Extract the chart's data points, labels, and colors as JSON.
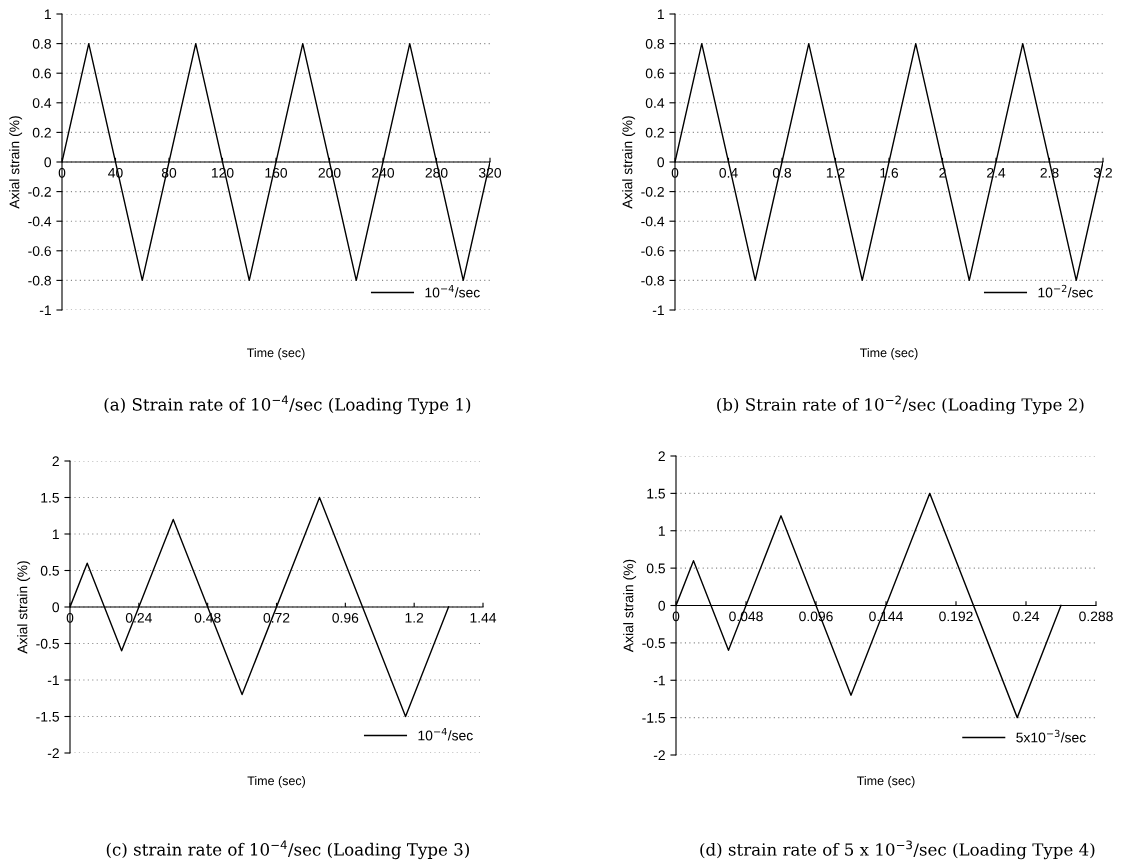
{
  "chart_data": [
    {
      "type": "line",
      "xlabel": "Time (sec)",
      "ylabel": "Axial strain (%)",
      "x": [
        0,
        20,
        60,
        100,
        140,
        180,
        220,
        260,
        300,
        320
      ],
      "series": [
        {
          "name": "10$^{−4}$/sec",
          "color": "#000000",
          "values": [
            0,
            0.8,
            -0.8,
            0.8,
            -0.8,
            0.8,
            -0.8,
            0.8,
            -0.8,
            0
          ]
        }
      ],
      "xlim": [
        0,
        320
      ],
      "xticks": [
        0,
        40,
        80,
        120,
        160,
        200,
        240,
        280,
        320
      ],
      "ylim": [
        -1,
        1
      ],
      "yticks": [
        -1,
        -0.8,
        -0.6,
        -0.4,
        -0.2,
        0,
        0.2,
        0.4,
        0.6,
        0.8,
        1
      ],
      "grid": "y",
      "legend": "bottom right",
      "marker": "none",
      "line_style": "solid",
      "annotations": [
        "(a) Strain rate of 10$^{−4}$/sec (Loading Type 1)"
      ]
    },
    {
      "type": "line",
      "xlabel": "Time (sec)",
      "ylabel": "Axial strain (%)",
      "x": [
        0,
        0.2,
        0.6,
        1.0,
        1.4,
        1.8,
        2.2,
        2.6,
        3.0,
        3.2
      ],
      "series": [
        {
          "name": "10$^{−2}$/sec",
          "color": "#000000",
          "values": [
            0,
            0.8,
            -0.8,
            0.8,
            -0.8,
            0.8,
            -0.8,
            0.8,
            -0.8,
            0
          ]
        }
      ],
      "xlim": [
        0,
        3.2
      ],
      "xticks": [
        0,
        0.4,
        0.8,
        1.2,
        1.6,
        2,
        2.4,
        2.8,
        3.2
      ],
      "ylim": [
        -1,
        1
      ],
      "yticks": [
        -1,
        -0.8,
        -0.6,
        -0.4,
        -0.2,
        0,
        0.2,
        0.4,
        0.6,
        0.8,
        1
      ],
      "grid": "y",
      "legend": "bottom right",
      "marker": "none",
      "line_style": "solid",
      "annotations": [
        "(b) Strain rate of 10$^{−2}$/sec (Loading Type 2)"
      ]
    },
    {
      "type": "line",
      "xlabel": "Time (sec)",
      "ylabel": "Axial strain (%)",
      "x": [
        0,
        0.06,
        0.18,
        0.36,
        0.6,
        0.87,
        1.17,
        1.32
      ],
      "series": [
        {
          "name": "10$^{−4}$/sec",
          "color": "#000000",
          "values": [
            0,
            0.6,
            -0.6,
            1.2,
            -1.2,
            1.5,
            -1.5,
            0
          ]
        }
      ],
      "xlim": [
        0,
        1.44
      ],
      "xticks": [
        0,
        0.24,
        0.48,
        0.72,
        0.96,
        1.2,
        1.44
      ],
      "ylim": [
        -2,
        2
      ],
      "yticks": [
        -2,
        -1.5,
        -1,
        -0.5,
        0,
        0.5,
        1,
        1.5,
        2
      ],
      "grid": "y",
      "legend": "bottom right",
      "marker": "none",
      "line_style": "solid",
      "annotations": [
        "(c) strain rate of 10$^{−4}$/sec (Loading Type 3)"
      ]
    },
    {
      "type": "line",
      "xlabel": "Time (sec)",
      "ylabel": "Axial strain (%)",
      "x": [
        0,
        0.012,
        0.036,
        0.072,
        0.12,
        0.174,
        0.234,
        0.264
      ],
      "series": [
        {
          "name": "5x10$^{−3}$/sec",
          "color": "#000000",
          "values": [
            0,
            0.6,
            -0.6,
            1.2,
            -1.2,
            1.5,
            -1.5,
            0
          ]
        }
      ],
      "xlim": [
        0,
        0.288
      ],
      "xticks": [
        0,
        0.048,
        0.096,
        0.144,
        0.192,
        0.24,
        0.288
      ],
      "ylim": [
        -2,
        2
      ],
      "yticks": [
        -2,
        -1.5,
        -1,
        -0.5,
        0,
        0.5,
        1,
        1.5,
        2
      ],
      "grid": "y",
      "legend": "bottom right",
      "marker": "none",
      "line_style": "solid",
      "annotations": [
        "(d) strain rate of 5 x 10$^{−3}$/sec (Loading Type 4)"
      ]
    }
  ]
}
